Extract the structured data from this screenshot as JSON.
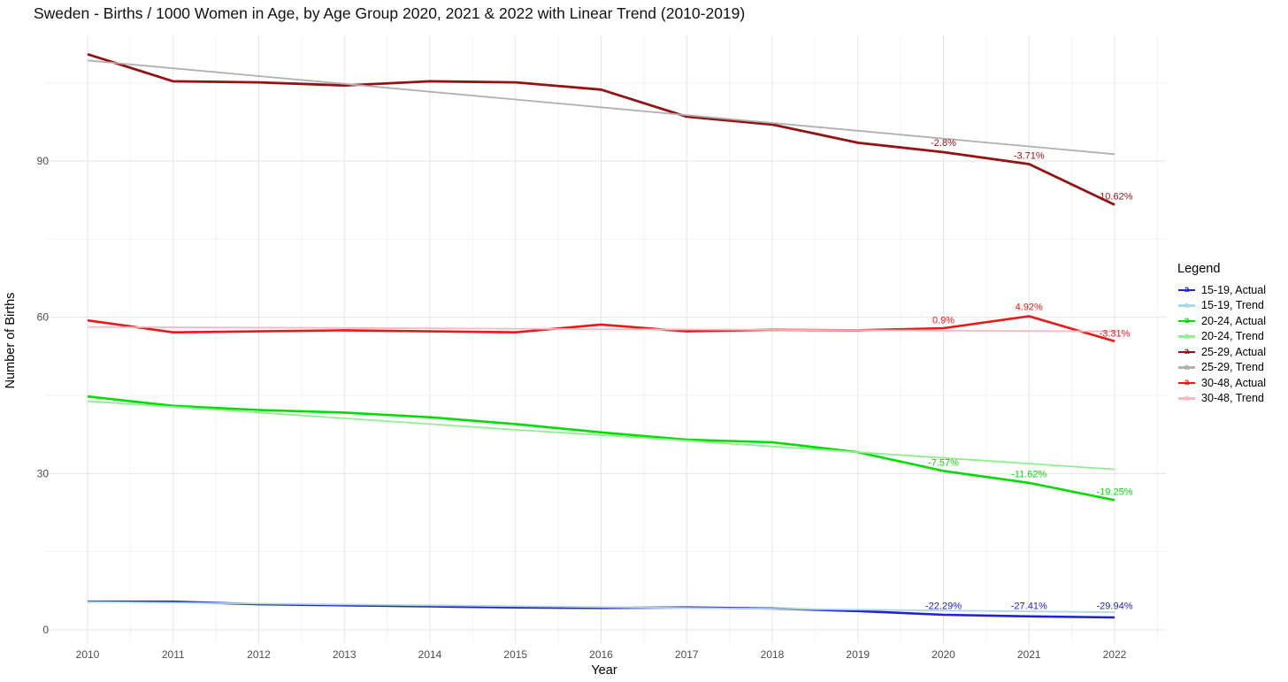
{
  "chart_data": {
    "type": "line",
    "title": "Sweden - Births / 1000 Women in Age, by Age Group 2020, 2021 & 2022 with Linear Trend (2010-2019)",
    "xlabel": "Year",
    "ylabel": "Number of Births",
    "x": [
      2010,
      2011,
      2012,
      2013,
      2014,
      2015,
      2016,
      2017,
      2018,
      2019,
      2020,
      2021,
      2022
    ],
    "xticks": [
      2010,
      2011,
      2012,
      2013,
      2014,
      2015,
      2016,
      2017,
      2018,
      2019,
      2020,
      2021,
      2022
    ],
    "yticks": [
      0,
      30,
      60,
      90
    ],
    "ylim": [
      0,
      114
    ],
    "grid": {
      "y_major": [
        0,
        30,
        60,
        90
      ],
      "y_minor": [
        15,
        45,
        75,
        105
      ],
      "x_major": [
        2010,
        2011,
        2012,
        2013,
        2014,
        2015,
        2016,
        2017,
        2018,
        2019,
        2020,
        2021,
        2022
      ],
      "x_minor": [
        2010.5,
        2011.5,
        2012.5,
        2013.5,
        2014.5,
        2015.5,
        2016.5,
        2017.5,
        2018.5,
        2019.5,
        2020.5,
        2021.5,
        2022.5
      ]
    },
    "legend_title": "Legend",
    "legend_position": "right",
    "series": [
      {
        "name": "15-19, Actual",
        "color": "#2222CC",
        "width": 2.6,
        "values": [
          5.4,
          5.4,
          4.9,
          4.7,
          4.5,
          4.3,
          4.2,
          4.3,
          4.1,
          3.6,
          2.88,
          2.58,
          2.37
        ]
      },
      {
        "name": "15-19, Trend",
        "color": "#ADD8E6",
        "width": 1.8,
        "values": [
          5.35,
          5.19,
          5.02,
          4.86,
          4.7,
          4.53,
          4.37,
          4.2,
          4.04,
          3.88,
          3.71,
          3.55,
          3.38
        ]
      },
      {
        "name": "20-24, Actual",
        "color": "#00DD00",
        "width": 2.6,
        "values": [
          44.8,
          43.0,
          42.2,
          41.7,
          40.8,
          39.5,
          37.9,
          36.5,
          36.0,
          34.1,
          30.5,
          28.2,
          24.9
        ]
      },
      {
        "name": "20-24, Trend",
        "color": "#90EE90",
        "width": 1.8,
        "values": [
          43.9,
          42.8,
          41.7,
          40.6,
          39.5,
          38.4,
          37.4,
          36.3,
          35.2,
          34.1,
          33.0,
          31.9,
          30.8
        ]
      },
      {
        "name": "25-29, Actual",
        "color": "#951212",
        "width": 2.8,
        "values": [
          110.5,
          105.3,
          105.1,
          104.5,
          105.3,
          105.1,
          103.7,
          98.5,
          97.0,
          93.5,
          91.7,
          89.4,
          81.6
        ]
      },
      {
        "name": "25-29, Trend",
        "color": "#B0B0B0",
        "width": 1.8,
        "values": [
          109.3,
          107.8,
          106.3,
          104.8,
          103.3,
          101.8,
          100.3,
          98.8,
          97.3,
          95.8,
          94.3,
          92.8,
          91.3
        ]
      },
      {
        "name": "30-48, Actual",
        "color": "#EE1515",
        "width": 2.6,
        "values": [
          59.4,
          57.1,
          57.3,
          57.5,
          57.3,
          57.1,
          58.6,
          57.3,
          57.6,
          57.5,
          57.9,
          60.2,
          55.4
        ]
      },
      {
        "name": "30-48, Trend",
        "color": "#FFB6C1",
        "width": 1.8,
        "values": [
          58.15,
          58.08,
          58.01,
          57.94,
          57.87,
          57.8,
          57.72,
          57.65,
          57.58,
          57.51,
          57.44,
          57.37,
          57.3
        ]
      }
    ],
    "annotations": [
      {
        "series": "25-29, Actual",
        "x": 2020,
        "y": 93.5,
        "text": "-2.8%"
      },
      {
        "series": "25-29, Actual",
        "x": 2021,
        "y": 91.0,
        "text": "-3.71%"
      },
      {
        "series": "25-29, Actual",
        "x": 2022,
        "y": 83.2,
        "text": "-10.62%"
      },
      {
        "series": "30-48, Actual",
        "x": 2020,
        "y": 59.4,
        "text": "0.9%"
      },
      {
        "series": "30-48, Actual",
        "x": 2021,
        "y": 62.0,
        "text": "4.92%"
      },
      {
        "series": "30-48, Actual",
        "x": 2022,
        "y": 56.9,
        "text": "-3.31%"
      },
      {
        "series": "20-24, Actual",
        "x": 2020,
        "y": 32.1,
        "text": "-7.57%"
      },
      {
        "series": "20-24, Actual",
        "x": 2021,
        "y": 29.9,
        "text": "-11.62%"
      },
      {
        "series": "20-24, Actual",
        "x": 2022,
        "y": 26.5,
        "text": "-19.25%"
      },
      {
        "series": "15-19, Actual",
        "x": 2020,
        "y": 4.6,
        "text": "-22.29%"
      },
      {
        "series": "15-19, Actual",
        "x": 2021,
        "y": 4.6,
        "text": "-27.41%"
      },
      {
        "series": "15-19, Actual",
        "x": 2022,
        "y": 4.6,
        "text": "-29.94%"
      }
    ],
    "colors": {
      "grid_major": "#E5E5E5",
      "grid_minor": "#F2F2F2",
      "tick_text": "#4D4D4D",
      "axis_title_text": "#000000",
      "title_text": "#111111"
    }
  }
}
